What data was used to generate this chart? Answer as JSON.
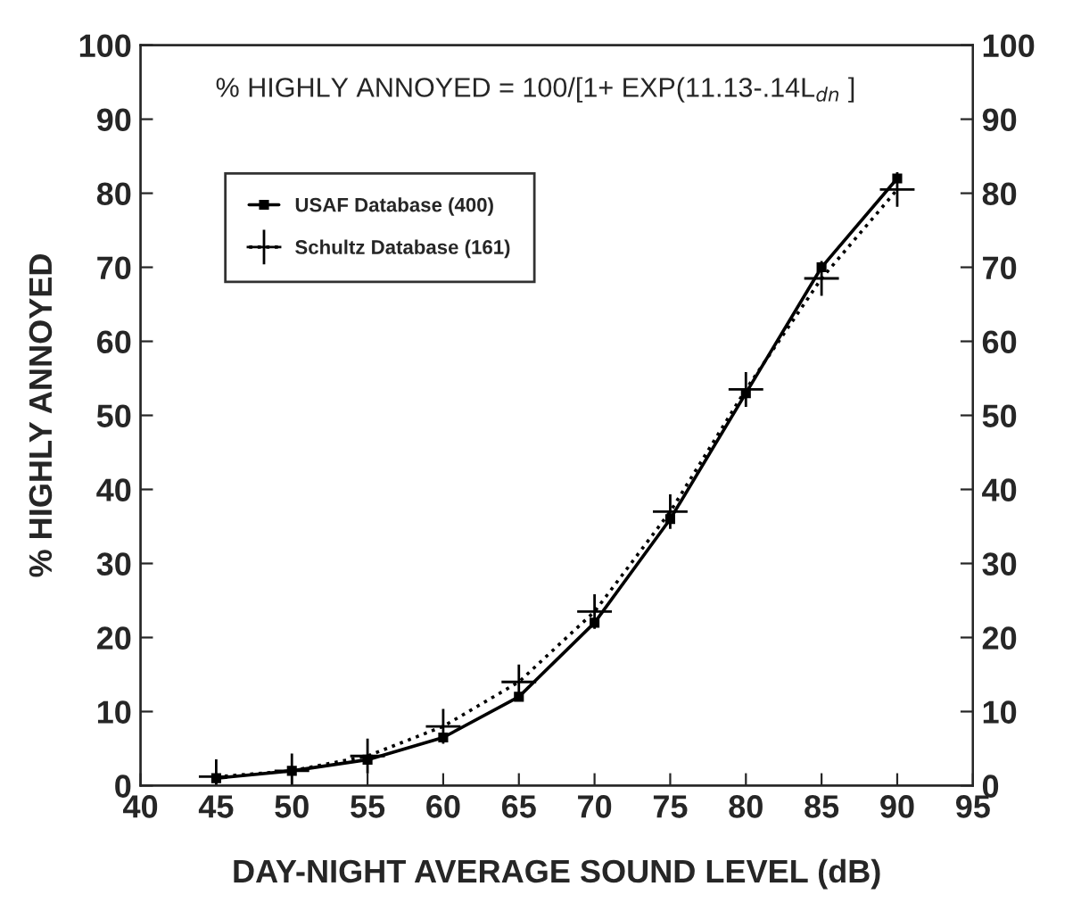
{
  "chart_data": {
    "type": "line",
    "xlabel": "DAY-NIGHT AVERAGE SOUND LEVEL (dB)",
    "ylabel": "% HIGHLY ANNOYED",
    "annotations": [
      "% HIGHLY ANNOYED = 100/[1+ EXP(11.13-.14L$_{dn}$ ]"
    ],
    "x": [
      45,
      50,
      55,
      60,
      65,
      70,
      75,
      80,
      85,
      90
    ],
    "series": [
      {
        "name": "USAF Database (400)",
        "color": "#000000",
        "marker": "square",
        "line_style": "solid",
        "values": [
          1,
          2,
          3.5,
          6.5,
          12,
          22,
          36,
          53,
          70,
          82
        ]
      },
      {
        "name": "Schultz Database (161)",
        "color": "#000000",
        "marker": "cross",
        "line_style": "dotted",
        "values": [
          1.2,
          2,
          4,
          8,
          14,
          23.5,
          37,
          53.5,
          68.5,
          80.5
        ]
      }
    ],
    "xlim": [
      40,
      95
    ],
    "xticks": [
      40,
      45,
      50,
      55,
      60,
      65,
      70,
      75,
      80,
      85,
      90,
      95
    ],
    "ylim": [
      0,
      100
    ],
    "yticks": [
      0,
      10,
      20,
      30,
      40,
      50,
      60,
      70,
      80,
      90,
      100
    ],
    "y2lim": [
      0,
      100
    ],
    "y2ticks": [
      0,
      10,
      20,
      30,
      40,
      50,
      60,
      70,
      80,
      90,
      100
    ],
    "legend": "top left",
    "grid": false
  }
}
